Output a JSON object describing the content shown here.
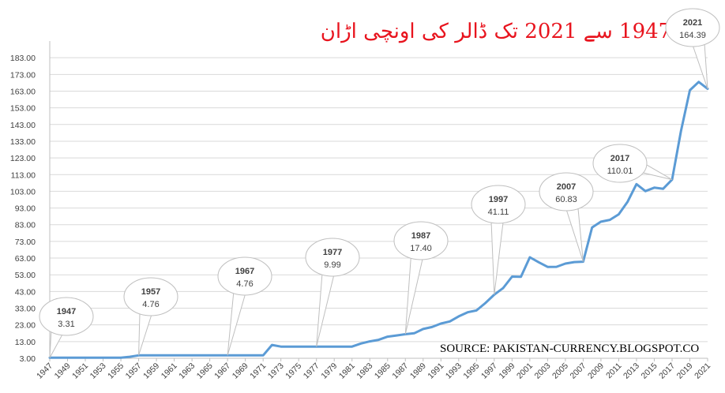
{
  "chart_data": {
    "type": "line",
    "title": "1947 سے 2021 تک ڈالر کی اونچی اڑان",
    "source": "SOURCE: PAKISTAN-CURRENCY.BLOGSPOT.CO",
    "ylim": [
      3.0,
      193.0
    ],
    "y_ticks": [
      "3.00",
      "13.00",
      "23.00",
      "33.00",
      "43.00",
      "53.00",
      "63.00",
      "73.00",
      "83.00",
      "93.00",
      "103.00",
      "113.00",
      "123.00",
      "133.00",
      "143.00",
      "153.00",
      "163.00",
      "173.00",
      "183.00"
    ],
    "x_tick_labels": [
      "1947",
      "1949",
      "1951",
      "1953",
      "1955",
      "1957",
      "1959",
      "1961",
      "1963",
      "1965",
      "1967",
      "1969",
      "1971",
      "1973",
      "1975",
      "1977",
      "1979",
      "1981",
      "1983",
      "1985",
      "1987",
      "1989",
      "1991",
      "1993",
      "1995",
      "1997",
      "1999",
      "2001",
      "2003",
      "2005",
      "2007",
      "2009",
      "2011",
      "2013",
      "2015",
      "2017",
      "2019",
      "2021"
    ],
    "grid": true,
    "series_color": "#5b9bd5",
    "x": [
      1947,
      1948,
      1949,
      1950,
      1951,
      1952,
      1953,
      1954,
      1955,
      1956,
      1957,
      1958,
      1959,
      1960,
      1961,
      1962,
      1963,
      1964,
      1965,
      1966,
      1967,
      1968,
      1969,
      1970,
      1971,
      1972,
      1973,
      1974,
      1975,
      1976,
      1977,
      1978,
      1979,
      1980,
      1981,
      1982,
      1983,
      1984,
      1985,
      1986,
      1987,
      1988,
      1989,
      1990,
      1991,
      1992,
      1993,
      1994,
      1995,
      1996,
      1997,
      1998,
      1999,
      2000,
      2001,
      2002,
      2003,
      2004,
      2005,
      2006,
      2007,
      2008,
      2009,
      2010,
      2011,
      2012,
      2013,
      2014,
      2015,
      2016,
      2017,
      2018,
      2019,
      2020,
      2021
    ],
    "values": [
      3.31,
      3.31,
      3.31,
      3.31,
      3.31,
      3.31,
      3.31,
      3.31,
      3.31,
      3.91,
      4.76,
      4.76,
      4.76,
      4.76,
      4.76,
      4.76,
      4.76,
      4.76,
      4.76,
      4.76,
      4.76,
      4.76,
      4.76,
      4.76,
      4.76,
      11.0,
      9.99,
      9.99,
      9.99,
      9.99,
      9.99,
      9.99,
      9.99,
      9.99,
      9.99,
      11.85,
      13.12,
      14.05,
      15.93,
      16.65,
      17.4,
      18.0,
      20.54,
      21.71,
      23.8,
      25.08,
      28.11,
      30.57,
      31.64,
      36.08,
      41.11,
      45.05,
      51.9,
      51.77,
      63.5,
      60.54,
      57.75,
      57.8,
      59.7,
      60.6,
      60.83,
      81.35,
      84.8,
      85.9,
      89.2,
      96.75,
      107.3,
      103.1,
      105.2,
      104.5,
      110.01,
      139.0,
      163.5,
      168.5,
      164.39
    ],
    "annotations": [
      {
        "year": "1947",
        "value": "3.31"
      },
      {
        "year": "1957",
        "value": "4.76"
      },
      {
        "year": "1967",
        "value": "4.76"
      },
      {
        "year": "1977",
        "value": "9.99"
      },
      {
        "year": "1987",
        "value": "17.40"
      },
      {
        "year": "1997",
        "value": "41.11"
      },
      {
        "year": "2007",
        "value": "60.83"
      },
      {
        "year": "2017",
        "value": "110.01"
      },
      {
        "year": "2021",
        "value": "164.39"
      }
    ]
  }
}
